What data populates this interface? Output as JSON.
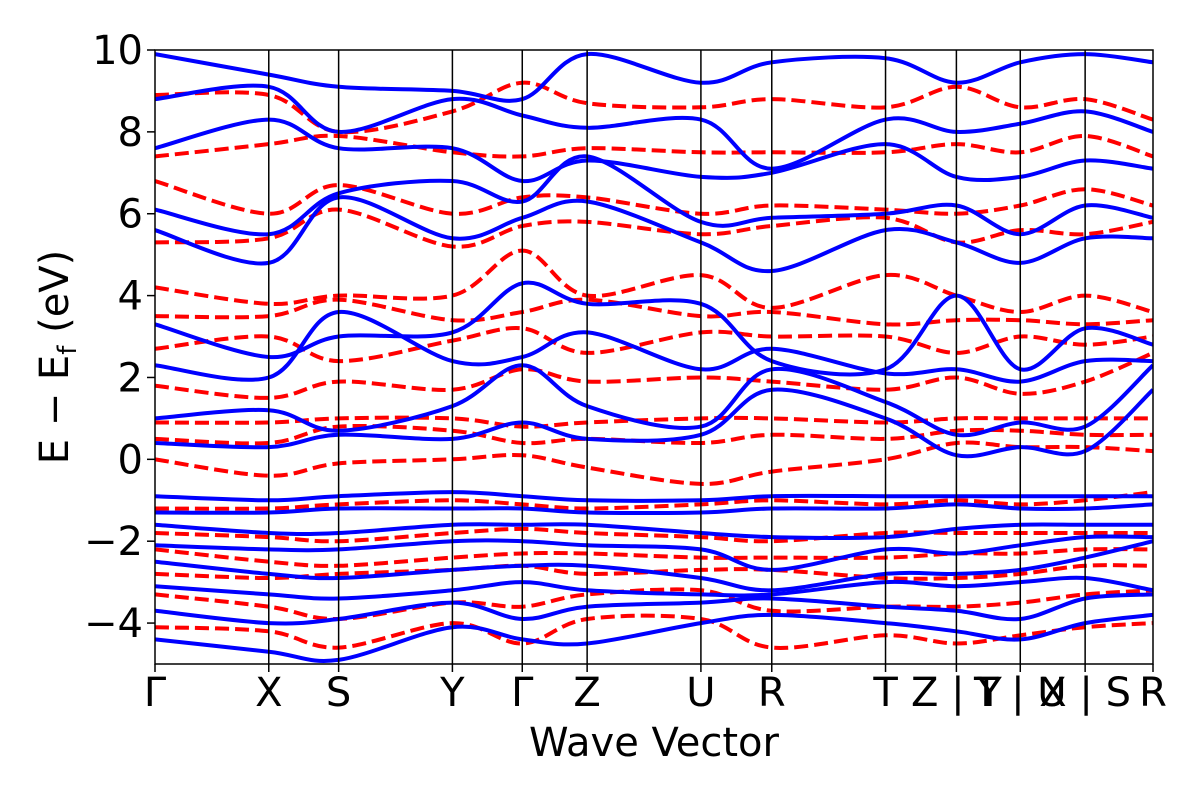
{
  "chart_data": {
    "type": "line",
    "title": "",
    "xlabel": "Wave Vector",
    "ylabel": "E − E_f (eV)",
    "ylabel_main": "E − E",
    "ylabel_sub": "f",
    "ylabel_unit": " (eV)",
    "ylim": [
      -5,
      10
    ],
    "yticks": [
      {
        "value": -4,
        "label": "−4"
      },
      {
        "value": -2,
        "label": "−2"
      },
      {
        "value": 0,
        "label": "0"
      },
      {
        "value": 2,
        "label": "2"
      },
      {
        "value": 4,
        "label": "4"
      },
      {
        "value": 6,
        "label": "6"
      },
      {
        "value": 8,
        "label": "8"
      },
      {
        "value": 10,
        "label": "10"
      }
    ],
    "xlim": [
      0,
      1
    ],
    "kpoints": [
      {
        "label": "Γ",
        "pos": 0.0
      },
      {
        "label": "X",
        "pos": 0.114
      },
      {
        "label": "S",
        "pos": 0.184
      },
      {
        "label": "Y",
        "pos": 0.298
      },
      {
        "label": "Γ",
        "pos": 0.368
      },
      {
        "label": "Z",
        "pos": 0.433
      },
      {
        "label": "U",
        "pos": 0.547
      },
      {
        "label": "R",
        "pos": 0.618
      },
      {
        "label": "T",
        "pos": 0.732
      },
      {
        "label": "Z | Y",
        "pos": 0.803
      },
      {
        "label": "T | U",
        "pos": 0.867
      },
      {
        "label": "X | S",
        "pos": 0.932
      },
      {
        "label": "R",
        "pos": 1.0
      }
    ],
    "series": [
      {
        "style": "solid",
        "color": "#0000ff",
        "linewidth": 4,
        "x": [
          0,
          0.114,
          0.184,
          0.298,
          0.368,
          0.433,
          0.547,
          0.618,
          0.732,
          0.803,
          0.867,
          0.932,
          1.0
        ],
        "bands": [
          [
            -4.4,
            -4.7,
            -4.9,
            -4.1,
            -4.4,
            -4.5,
            -4.0,
            -3.8,
            -4.0,
            -4.2,
            -4.4,
            -4.0,
            -3.8
          ],
          [
            -3.7,
            -4.0,
            -3.9,
            -3.5,
            -3.9,
            -3.6,
            -3.5,
            -3.4,
            -3.6,
            -3.7,
            -3.9,
            -3.4,
            -3.3
          ],
          [
            -3.1,
            -3.3,
            -3.4,
            -3.2,
            -3.0,
            -3.2,
            -3.3,
            -3.3,
            -3.0,
            -3.1,
            -3.0,
            -2.9,
            -3.2
          ],
          [
            -2.5,
            -2.8,
            -2.9,
            -2.7,
            -2.6,
            -2.6,
            -2.9,
            -3.2,
            -2.8,
            -2.8,
            -2.7,
            -2.4,
            -2.0
          ],
          [
            -2.1,
            -2.2,
            -2.2,
            -2.0,
            -2.0,
            -2.1,
            -2.2,
            -2.7,
            -2.2,
            -2.3,
            -2.1,
            -1.9,
            -1.9
          ],
          [
            -1.6,
            -1.8,
            -1.8,
            -1.6,
            -1.6,
            -1.6,
            -1.8,
            -1.9,
            -1.9,
            -1.7,
            -1.6,
            -1.6,
            -1.6
          ],
          [
            -1.3,
            -1.3,
            -1.2,
            -1.2,
            -1.2,
            -1.3,
            -1.3,
            -1.2,
            -1.2,
            -1.1,
            -1.2,
            -1.2,
            -1.1
          ],
          [
            -0.9,
            -1.0,
            -0.9,
            -0.8,
            -0.9,
            -1.0,
            -1.0,
            -0.9,
            -0.9,
            -0.9,
            -0.9,
            -0.9,
            -0.9
          ],
          [
            0.4,
            0.3,
            0.6,
            0.5,
            0.9,
            0.5,
            0.6,
            1.7,
            1.0,
            0.1,
            0.3,
            0.2,
            1.7
          ],
          [
            1.0,
            1.2,
            0.7,
            1.3,
            2.3,
            1.3,
            0.8,
            2.2,
            1.4,
            0.6,
            0.9,
            0.8,
            2.3
          ],
          [
            2.3,
            2.0,
            3.6,
            2.4,
            2.5,
            3.1,
            2.2,
            2.7,
            2.1,
            2.2,
            1.9,
            2.4,
            2.4
          ],
          [
            3.3,
            2.5,
            3.0,
            3.1,
            4.3,
            3.8,
            3.8,
            2.4,
            2.2,
            4.0,
            2.2,
            3.2,
            2.8
          ],
          [
            5.6,
            4.8,
            6.4,
            5.4,
            5.9,
            6.3,
            5.3,
            4.6,
            5.6,
            5.3,
            4.8,
            5.4,
            5.4
          ],
          [
            6.1,
            5.5,
            6.5,
            6.8,
            6.3,
            7.4,
            5.8,
            5.9,
            6.0,
            6.2,
            5.5,
            6.2,
            5.9
          ],
          [
            7.6,
            8.3,
            7.6,
            7.6,
            6.8,
            7.3,
            6.9,
            7.0,
            7.7,
            6.9,
            6.9,
            7.3,
            7.1
          ],
          [
            8.8,
            9.1,
            8.0,
            8.8,
            8.4,
            8.1,
            8.3,
            7.1,
            8.3,
            8.0,
            8.2,
            8.5,
            8.0
          ],
          [
            9.9,
            9.4,
            9.1,
            9.0,
            8.8,
            9.9,
            9.2,
            9.7,
            9.8,
            9.2,
            9.7,
            9.9,
            9.7
          ]
        ]
      },
      {
        "style": "dashed",
        "color": "#ff0000",
        "linewidth": 4,
        "x": [
          0,
          0.114,
          0.184,
          0.298,
          0.368,
          0.433,
          0.547,
          0.618,
          0.732,
          0.803,
          0.867,
          0.932,
          1.0
        ],
        "bands": [
          [
            -4.1,
            -4.2,
            -4.6,
            -4.0,
            -4.5,
            -3.9,
            -3.9,
            -4.6,
            -4.3,
            -4.5,
            -4.3,
            -4.1,
            -4.0
          ],
          [
            -3.3,
            -3.6,
            -3.9,
            -3.5,
            -3.6,
            -3.3,
            -3.2,
            -3.7,
            -3.6,
            -3.6,
            -3.5,
            -3.3,
            -3.2
          ],
          [
            -2.8,
            -2.9,
            -2.8,
            -2.7,
            -2.6,
            -2.8,
            -2.7,
            -2.7,
            -2.9,
            -2.9,
            -2.8,
            -2.6,
            -2.6
          ],
          [
            -2.2,
            -2.5,
            -2.6,
            -2.4,
            -2.3,
            -2.3,
            -2.4,
            -2.4,
            -2.4,
            -2.3,
            -2.3,
            -2.2,
            -2.2
          ],
          [
            -1.8,
            -1.9,
            -2.0,
            -1.8,
            -1.7,
            -1.8,
            -1.9,
            -2.0,
            -1.8,
            -1.8,
            -1.8,
            -1.8,
            -1.8
          ],
          [
            -1.2,
            -1.2,
            -1.1,
            -1.0,
            -1.1,
            -1.2,
            -1.1,
            -1.0,
            -1.1,
            -1.0,
            -1.1,
            -1.0,
            -0.8
          ],
          [
            0.0,
            -0.4,
            -0.1,
            0.0,
            0.1,
            -0.2,
            -0.6,
            -0.3,
            0.0,
            0.4,
            0.3,
            0.3,
            0.2
          ],
          [
            0.5,
            0.4,
            0.8,
            0.7,
            0.4,
            0.5,
            0.4,
            0.6,
            0.5,
            0.7,
            0.7,
            0.6,
            0.6
          ],
          [
            0.9,
            0.9,
            1.0,
            1.0,
            0.8,
            0.9,
            1.0,
            1.0,
            0.9,
            1.0,
            1.0,
            1.0,
            1.0
          ],
          [
            1.8,
            1.5,
            1.9,
            1.7,
            2.2,
            1.9,
            2.0,
            1.9,
            1.7,
            2.0,
            1.6,
            1.9,
            2.6
          ],
          [
            2.7,
            3.0,
            2.4,
            2.9,
            3.2,
            2.6,
            3.1,
            3.0,
            3.0,
            2.6,
            3.0,
            2.8,
            3.0
          ],
          [
            3.5,
            3.5,
            3.9,
            3.4,
            3.6,
            3.9,
            3.5,
            3.6,
            3.3,
            3.4,
            3.4,
            3.3,
            3.4
          ],
          [
            4.2,
            3.8,
            4.0,
            4.0,
            5.1,
            4.0,
            4.5,
            3.7,
            4.5,
            4.0,
            3.6,
            4.0,
            3.6
          ],
          [
            5.3,
            5.4,
            6.1,
            5.2,
            5.7,
            5.8,
            5.5,
            5.7,
            5.9,
            5.3,
            5.6,
            5.5,
            5.8
          ],
          [
            6.8,
            6.0,
            6.7,
            6.0,
            6.4,
            6.4,
            6.0,
            6.2,
            6.1,
            6.0,
            6.2,
            6.6,
            6.2
          ],
          [
            7.4,
            7.7,
            7.9,
            7.5,
            7.4,
            7.6,
            7.5,
            7.5,
            7.5,
            7.7,
            7.5,
            7.9,
            7.4
          ],
          [
            8.9,
            8.9,
            8.0,
            8.5,
            9.2,
            8.7,
            8.6,
            8.8,
            8.6,
            9.1,
            8.6,
            8.8,
            8.3
          ]
        ]
      }
    ]
  }
}
